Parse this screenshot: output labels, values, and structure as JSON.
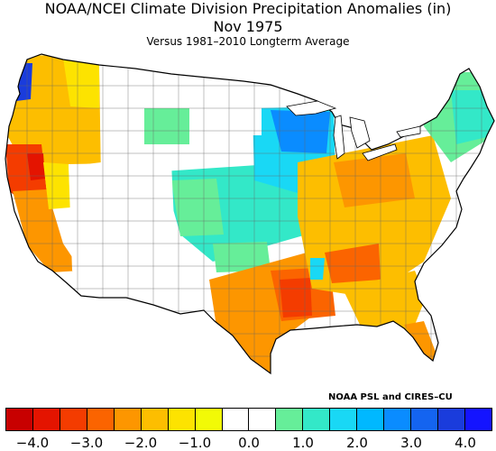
{
  "header": {
    "title": "NOAA/NCEI Climate Division Precipitation Anomalies (in)",
    "month": "Nov 1975",
    "subtitle": "Versus 1981–2010 Longterm Average"
  },
  "credit": "NOAA PSL and CIRES–CU",
  "legend": {
    "colors": [
      "#c80000",
      "#e41400",
      "#f43c00",
      "#fb6400",
      "#fd9600",
      "#fdbe00",
      "#fde300",
      "#f2fa06",
      "#ffffff",
      "#ffffff",
      "#66ee99",
      "#33e8c8",
      "#19d8f5",
      "#00b8ff",
      "#0a8cff",
      "#1464f0",
      "#1a3cdc",
      "#1414ff"
    ],
    "ticks": [
      "−4.0",
      "−3.0",
      "−2.0",
      "−1.0",
      "0.0",
      "1.0",
      "2.0",
      "3.0",
      "4.0"
    ]
  },
  "map": {
    "outline_color": "#000000",
    "regions": [
      {
        "name": "Pacific Northwest coast",
        "color": "#fdbe00"
      },
      {
        "name": "Northern California coast",
        "color": "#f43c00"
      },
      {
        "name": "Central California",
        "color": "#fd9600"
      },
      {
        "name": "Northern Plains / Upper Midwest",
        "color": "#19d8f5"
      },
      {
        "name": "Minnesota / Wisconsin",
        "color": "#0a8cff"
      },
      {
        "name": "Central Plains",
        "color": "#33e8c8"
      },
      {
        "name": "Lower Mississippi Valley",
        "color": "#f43c00"
      },
      {
        "name": "Texas / Gulf Coast",
        "color": "#fd9600"
      },
      {
        "name": "Southeast / Appalachians",
        "color": "#fdbe00"
      },
      {
        "name": "Northeast",
        "color": "#33e8c8"
      },
      {
        "name": "Interior West",
        "color": "#ffffff"
      }
    ]
  }
}
